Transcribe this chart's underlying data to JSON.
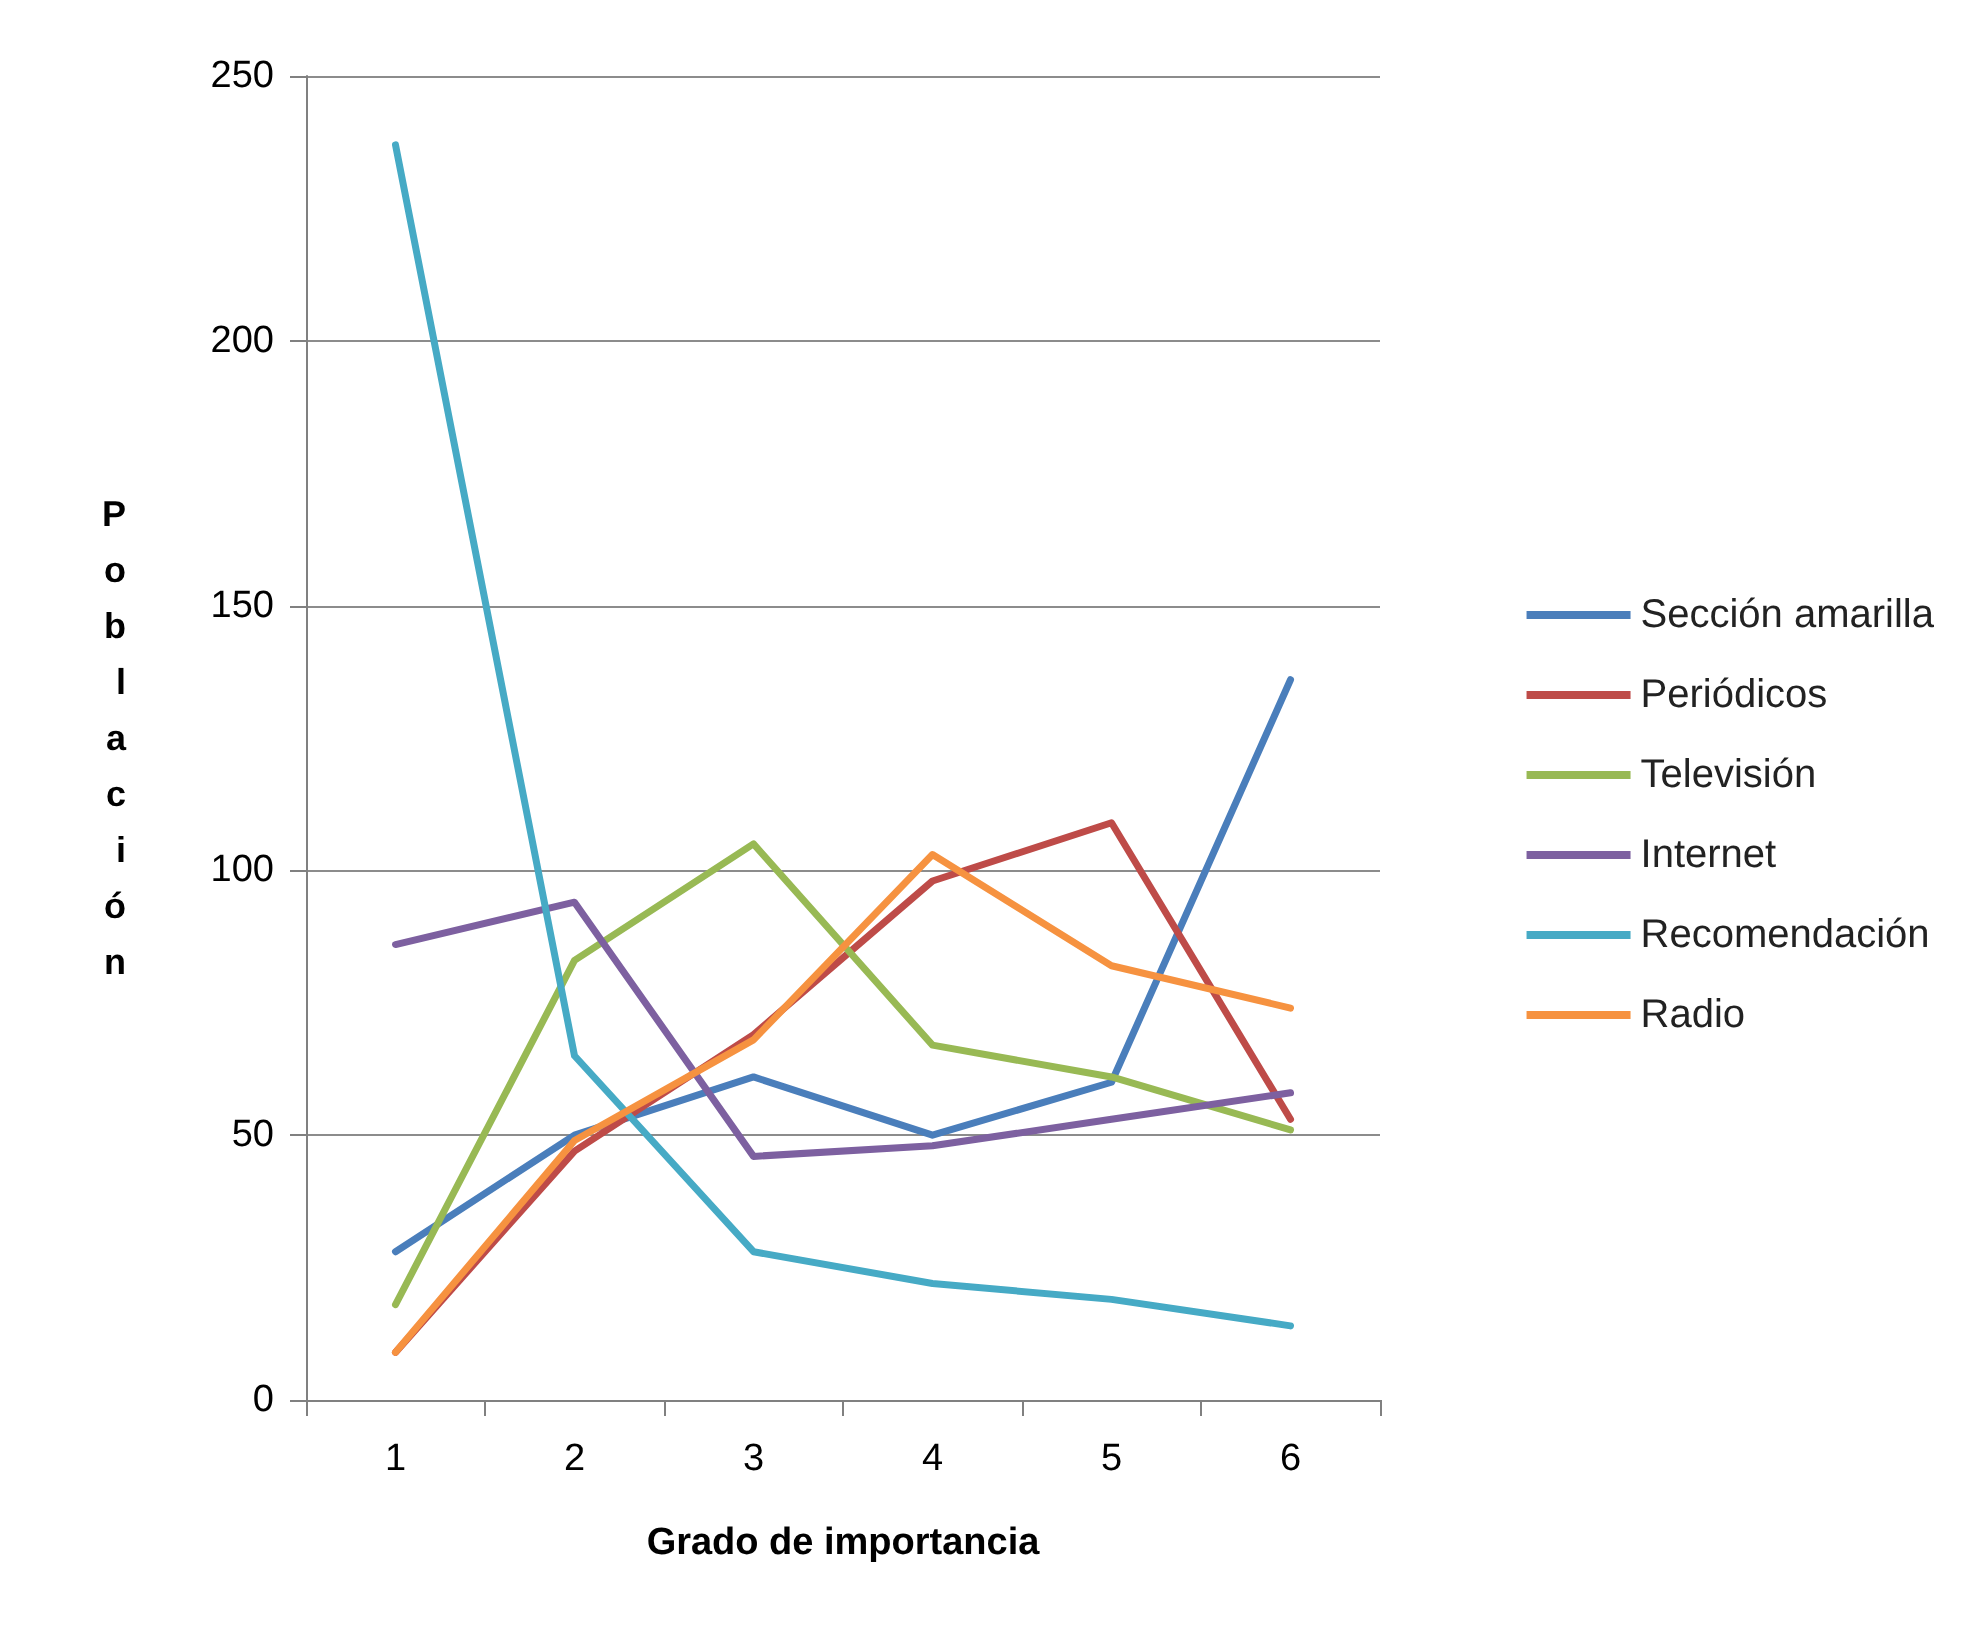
{
  "chart_data": {
    "type": "line",
    "xlabel": "Grado de importancia",
    "ylabel": "Población",
    "categories": [
      "1",
      "2",
      "3",
      "4",
      "5",
      "6"
    ],
    "ylim": [
      0,
      250
    ],
    "yticks": [
      0,
      50,
      100,
      150,
      200,
      250
    ],
    "grid": "y",
    "legend": "right",
    "marker": "none",
    "line_style": "solid",
    "series": [
      {
        "name": "Sección amarilla",
        "color": "#4a7ebb",
        "values": [
          28,
          50,
          61,
          50,
          60,
          136
        ]
      },
      {
        "name": "Periódicos",
        "color": "#be4b48",
        "values": [
          9,
          47,
          69,
          98,
          109,
          53
        ]
      },
      {
        "name": "Televisión",
        "color": "#98b954",
        "values": [
          18,
          83,
          105,
          67,
          61,
          51
        ]
      },
      {
        "name": "Internet",
        "color": "#7d60a0",
        "values": [
          86,
          94,
          46,
          48,
          53,
          58
        ]
      },
      {
        "name": "Recomendación",
        "color": "#46aac5",
        "values": [
          237,
          65,
          28,
          22,
          19,
          14
        ]
      },
      {
        "name": "Radio",
        "color": "#f69240",
        "values": [
          9,
          49,
          68,
          103,
          82,
          74
        ]
      }
    ]
  }
}
